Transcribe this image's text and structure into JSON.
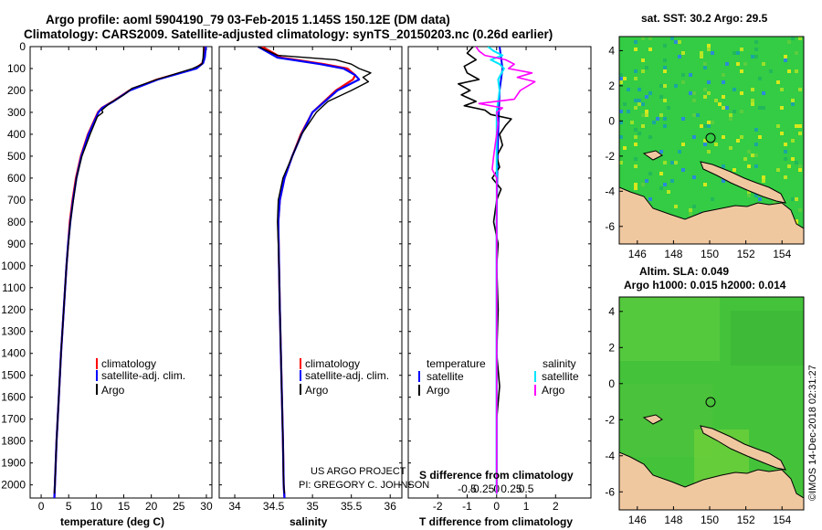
{
  "title": {
    "line1": "Argo profile: aoml 5904190_79 03-Feb-2015 1.145S 150.12E (DM data)",
    "line2": "Climatology: CARS2009. Satellite-adjusted climatology: synTS_20150203.nc (0.26d earlier)"
  },
  "colors": {
    "climatology": "#ff0000",
    "satellite": "#0000ff",
    "argo": "#000000",
    "sat_salinity": "#00e5ff",
    "argo_salinity": "#ff00ff",
    "land": "#f0c8a0"
  },
  "depth_axis": {
    "ticks": [
      "0",
      "100",
      "200",
      "300",
      "400",
      "500",
      "600",
      "700",
      "800",
      "900",
      "1000",
      "1100",
      "1200",
      "1300",
      "1400",
      "1500",
      "1600",
      "1700",
      "1800",
      "1900",
      "2000"
    ],
    "ylim": [
      0,
      2060
    ]
  },
  "temperature_panel": {
    "xlabel": "temperature (deg C)",
    "xticks": [
      "0",
      "5",
      "10",
      "15",
      "20",
      "25",
      "30"
    ],
    "xlim": [
      -2,
      31
    ],
    "legend": [
      "climatology",
      "satellite-adj. clim.",
      "Argo"
    ]
  },
  "salinity_panel": {
    "xlabel": "salinity",
    "xticks": [
      "34",
      "34.5",
      "35",
      "35.5",
      "36"
    ],
    "xlim": [
      33.8,
      36.15
    ],
    "legend": [
      "climatology",
      "satellite-adj. clim.",
      "Argo"
    ],
    "credit1": "US ARGO PROJECT",
    "credit2": "PI: GREGORY C. JOHNSON"
  },
  "difference_panel": {
    "xlabel": "T difference from climatology",
    "slabel": "S difference from climatology",
    "xticks": [
      "-2",
      "-1",
      "0",
      "1",
      "2"
    ],
    "sticks": [
      "-0.5",
      "-0.25",
      "0",
      "0.25",
      "0.5"
    ],
    "xlim": [
      -3,
      3.2
    ],
    "legend_t_title": "temperature",
    "legend_s_title": "salinity",
    "legend_items": [
      "satellite",
      "Argo"
    ]
  },
  "map_sst": {
    "title": "sat. SST: 30.2 Argo: 29.5",
    "xticks": [
      "146",
      "148",
      "150",
      "152",
      "154"
    ],
    "yticks": [
      "4",
      "2",
      "0",
      "-2",
      "-4",
      "-6"
    ]
  },
  "map_sla": {
    "title1": "Altim. SLA: 0.049",
    "title2": "Argo h1000: 0.015 h2000: 0.014",
    "xticks": [
      "146",
      "148",
      "150",
      "152",
      "154"
    ],
    "yticks": [
      "4",
      "2",
      "0",
      "-2",
      "-4",
      "-6"
    ]
  },
  "stamp": "©IMOS 14-Dec-2018 02:31:27",
  "chart_data": [
    {
      "type": "line",
      "title": "temperature",
      "xlabel": "temperature (deg C)",
      "ylabel": "depth",
      "series": [
        {
          "name": "climatology",
          "depth": [
            0,
            50,
            75,
            100,
            150,
            200,
            250,
            280,
            300,
            400,
            500,
            600,
            700,
            800,
            900,
            1000,
            1200,
            1400,
            1600,
            1800,
            2000,
            2060
          ],
          "values": [
            29.8,
            29.6,
            29.3,
            28,
            21,
            16,
            13,
            11,
            10.3,
            8.5,
            7.2,
            6.3,
            5.7,
            5.2,
            4.9,
            4.6,
            4.1,
            3.6,
            3.2,
            2.8,
            2.5,
            2.4
          ]
        },
        {
          "name": "satellite-adj. clim.",
          "depth": [
            0,
            50,
            75,
            100,
            150,
            200,
            250,
            280,
            300,
            400,
            500,
            600,
            700,
            800,
            900,
            1000,
            1200,
            1400,
            1600,
            1800,
            2000,
            2060
          ],
          "values": [
            29.9,
            29.7,
            29.4,
            28.2,
            21.2,
            16.1,
            13.1,
            11.1,
            10.4,
            8.6,
            7.3,
            6.4,
            5.8,
            5.3,
            4.9,
            4.6,
            4.1,
            3.6,
            3.2,
            2.8,
            2.5,
            2.4
          ]
        },
        {
          "name": "Argo",
          "depth": [
            0,
            50,
            80,
            100,
            150,
            190,
            220,
            260,
            290,
            300,
            320,
            400,
            500,
            600,
            800,
            1000,
            1200,
            1400,
            1600,
            1800,
            2000,
            2040
          ],
          "values": [
            29.5,
            29.4,
            29.2,
            27.5,
            21,
            16.5,
            15,
            12.4,
            11,
            11.2,
            10.2,
            8.9,
            7.4,
            6.4,
            5.3,
            4.6,
            4.1,
            3.6,
            3.2,
            2.8,
            2.5,
            2.4
          ]
        }
      ]
    },
    {
      "type": "line",
      "title": "salinity",
      "xlabel": "salinity",
      "ylabel": "depth",
      "series": [
        {
          "name": "climatology",
          "depth": [
            0,
            50,
            80,
            100,
            130,
            150,
            200,
            300,
            400,
            500,
            600,
            700,
            800,
            1000,
            1200,
            1500,
            1800,
            2000,
            2060
          ],
          "values": [
            34.35,
            34.6,
            35.15,
            35.45,
            35.55,
            35.52,
            35.3,
            35,
            34.85,
            34.74,
            34.64,
            34.58,
            34.56,
            34.57,
            34.58,
            34.6,
            34.62,
            34.63,
            34.64
          ]
        },
        {
          "name": "satellite-adj. clim.",
          "depth": [
            0,
            50,
            80,
            100,
            130,
            150,
            200,
            300,
            400,
            500,
            600,
            700,
            800,
            1000,
            1200,
            1500,
            1800,
            2000,
            2060
          ],
          "values": [
            34.3,
            34.55,
            35.1,
            35.4,
            35.55,
            35.6,
            35.32,
            35,
            34.86,
            34.74,
            34.64,
            34.58,
            34.56,
            34.57,
            34.58,
            34.6,
            34.62,
            34.63,
            34.64
          ]
        },
        {
          "name": "Argo",
          "depth": [
            0,
            40,
            60,
            80,
            100,
            120,
            140,
            160,
            200,
            250,
            300,
            400,
            500,
            600,
            700,
            800,
            1000,
            1200,
            1500,
            1800,
            2000,
            2040
          ],
          "values": [
            34.3,
            34.55,
            35.3,
            35.5,
            35.6,
            35.75,
            35.65,
            35.72,
            35.5,
            35.2,
            35.05,
            34.86,
            34.74,
            34.62,
            34.56,
            34.55,
            34.57,
            34.58,
            34.6,
            34.62,
            34.63,
            34.64
          ]
        }
      ]
    },
    {
      "type": "line",
      "title": "difference from climatology",
      "xlabel": "T difference from climatology",
      "ylabel": "depth",
      "series": [
        {
          "name": "temperature satellite",
          "depth": [
            0,
            100,
            200,
            400,
            600,
            800,
            1000,
            1500,
            2040
          ],
          "values": [
            0.1,
            0.2,
            0.1,
            0.05,
            0.02,
            0,
            0,
            0,
            0
          ]
        },
        {
          "name": "temperature Argo",
          "depth": [
            0,
            30,
            60,
            90,
            120,
            150,
            170,
            200,
            220,
            250,
            270,
            290,
            310,
            330,
            360,
            400,
            450,
            500,
            550,
            600,
            650,
            700,
            800,
            900,
            1000,
            1200,
            1400,
            1550,
            1700,
            2040
          ],
          "values": [
            -0.8,
            -1,
            -0.7,
            -1.1,
            -1,
            -0.6,
            -1.3,
            -0.9,
            -1.2,
            -0.7,
            -1.1,
            -0.4,
            -0.2,
            0.5,
            0.3,
            0.1,
            0.2,
            0,
            0.1,
            -0.15,
            0.15,
            0,
            -0.1,
            0.05,
            0,
            0.05,
            0,
            0.1,
            0,
            0
          ]
        },
        {
          "name": "salinity satellite",
          "depth": [
            0,
            20,
            40,
            60,
            80,
            100,
            150,
            200,
            300,
            400,
            600,
            1000,
            1500,
            2040
          ],
          "values": [
            -0.3,
            -0.1,
            0.2,
            -0.2,
            0.1,
            0.25,
            0.05,
            0.1,
            0,
            0,
            0,
            0,
            0,
            0
          ]
        },
        {
          "name": "salinity Argo",
          "depth": [
            0,
            20,
            40,
            60,
            80,
            100,
            120,
            140,
            160,
            200,
            240,
            260,
            280,
            300,
            350,
            400,
            500,
            560,
            600,
            700,
            1000,
            1500,
            2040
          ],
          "values": [
            -0.7,
            -0.6,
            -0.4,
            0.3,
            0.6,
            0.4,
            1.2,
            0.7,
            1.3,
            0.8,
            0.6,
            -0.6,
            0.2,
            0,
            0.05,
            0,
            -0.1,
            -0.15,
            0,
            0,
            0,
            0,
            0
          ]
        }
      ]
    }
  ]
}
